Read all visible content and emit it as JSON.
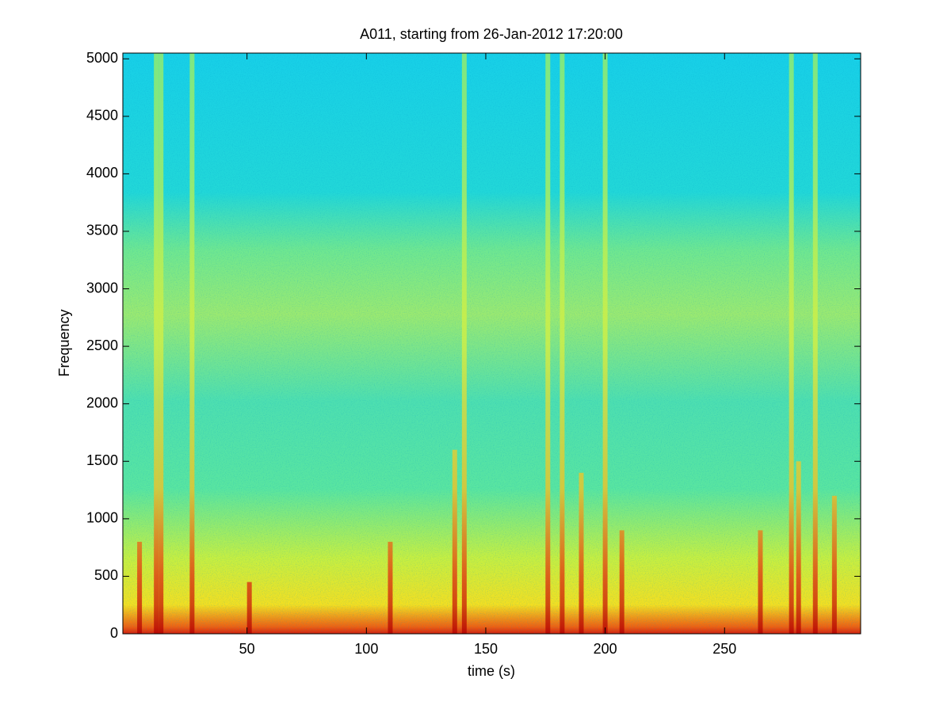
{
  "chart_data": {
    "type": "spectrogram",
    "title": "A011, starting from 26-Jan-2012 17:20:00",
    "x_label": "time (s)",
    "y_label": "Frequency",
    "x": [
      5,
      12,
      14,
      27,
      51,
      110,
      137,
      141,
      176,
      182,
      190,
      200,
      207,
      265,
      278,
      281,
      288,
      296
    ],
    "values": [
      800,
      5050,
      5050,
      5050,
      450,
      800,
      1600,
      5050,
      5050,
      5050,
      1400,
      5050,
      900,
      900,
      5050,
      1500,
      5050,
      1200
    ],
    "xlim": [
      -2,
      307
    ],
    "ylim": [
      0,
      5050
    ],
    "xticks": [
      50,
      100,
      150,
      200,
      250
    ],
    "yticks": [
      0,
      500,
      1000,
      1500,
      2000,
      2500,
      3000,
      3500,
      4000,
      4500,
      5000
    ]
  }
}
